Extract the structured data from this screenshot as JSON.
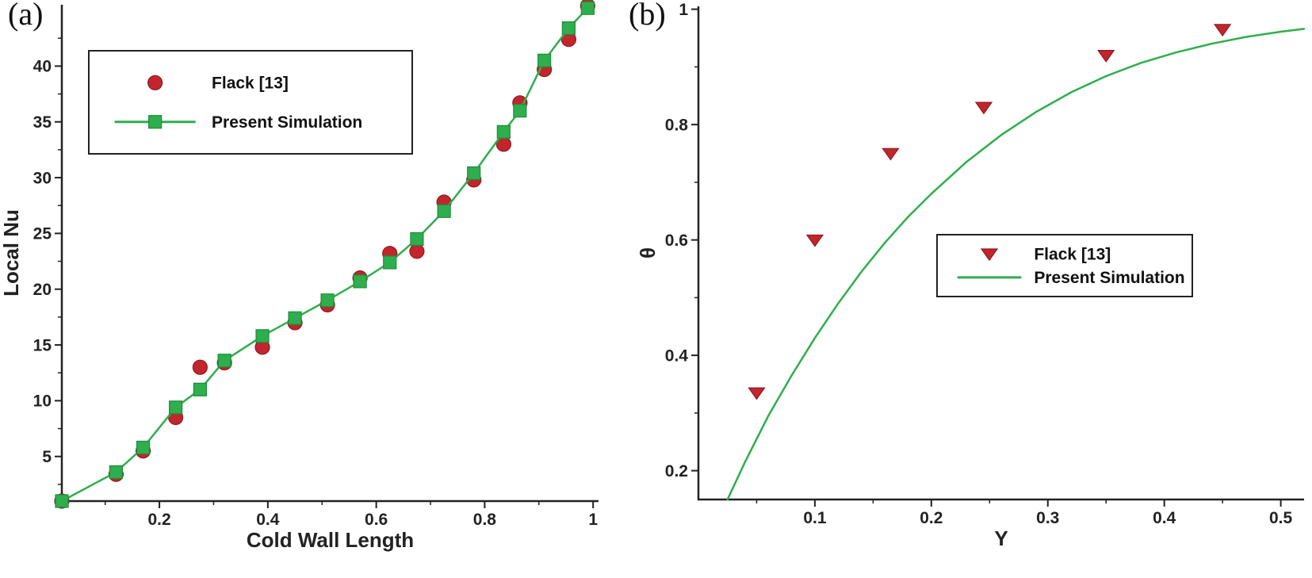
{
  "figure": {
    "background": "#ffffff"
  },
  "panels": [
    {
      "label": "(a)"
    },
    {
      "label": "(b)"
    }
  ],
  "colors": {
    "flack_red": "#c2262c",
    "flack_red_edge": "#8f1a20",
    "simulation_green": "#2fae4d",
    "simulation_green_edge": "#1f8c3c",
    "axis": "#222222"
  },
  "chart_data": [
    {
      "type": "scatter",
      "title": "",
      "xlabel": "Cold Wall Length",
      "ylabel": "Local Nu",
      "xlim": [
        0.02,
        1.01
      ],
      "ylim": [
        1,
        45.5
      ],
      "grid": false,
      "legend_position": "upper-left",
      "xticks": [
        {
          "v": 0.2,
          "label": "0.2"
        },
        {
          "v": 0.4,
          "label": "0.4"
        },
        {
          "v": 0.6,
          "label": "0.6"
        },
        {
          "v": 0.8,
          "label": "0.8"
        },
        {
          "v": 1.0,
          "label": "1"
        }
      ],
      "xminor": [
        0.1,
        0.3,
        0.5,
        0.7,
        0.9
      ],
      "yticks": [
        {
          "v": 5,
          "label": "5"
        },
        {
          "v": 10,
          "label": "10"
        },
        {
          "v": 15,
          "label": "15"
        },
        {
          "v": 20,
          "label": "20"
        },
        {
          "v": 25,
          "label": "25"
        },
        {
          "v": 30,
          "label": "30"
        },
        {
          "v": 35,
          "label": "35"
        },
        {
          "v": 40,
          "label": "40"
        }
      ],
      "yminor": [
        2.5,
        7.5,
        12.5,
        17.5,
        22.5,
        27.5,
        32.5,
        37.5,
        42.5
      ],
      "series": [
        {
          "name": "Flack [13]",
          "color": "#c2262c",
          "edge": "#8f1a20",
          "marker": "circle",
          "marker_size": 9,
          "line": false,
          "x": [
            0.02,
            0.12,
            0.17,
            0.23,
            0.275,
            0.32,
            0.39,
            0.45,
            0.51,
            0.57,
            0.625,
            0.675,
            0.725,
            0.78,
            0.835,
            0.865,
            0.91,
            0.955,
            0.99
          ],
          "y": [
            1.0,
            3.4,
            5.5,
            8.5,
            13.0,
            13.4,
            14.8,
            17.0,
            18.6,
            21.0,
            23.2,
            23.4,
            27.8,
            29.8,
            33.0,
            36.7,
            39.7,
            42.4,
            45.4
          ]
        },
        {
          "name": "Present Simulation",
          "color": "#2fae4d",
          "edge": "#1f8c3c",
          "marker": "square",
          "marker_size": 8,
          "line": true,
          "line_width": 2.5,
          "x": [
            0.02,
            0.12,
            0.17,
            0.23,
            0.275,
            0.32,
            0.39,
            0.45,
            0.51,
            0.57,
            0.625,
            0.675,
            0.725,
            0.78,
            0.835,
            0.865,
            0.91,
            0.955,
            0.99
          ],
          "y": [
            1.0,
            3.6,
            5.8,
            9.4,
            11.0,
            13.6,
            15.8,
            17.4,
            19.0,
            20.7,
            22.4,
            24.5,
            27.0,
            30.4,
            34.1,
            36.0,
            40.5,
            43.4,
            45.2
          ]
        }
      ]
    },
    {
      "type": "line",
      "title": "",
      "xlabel": "Y",
      "ylabel": "θ",
      "xlim": [
        0.0,
        0.52
      ],
      "ylim": [
        0.15,
        1.005
      ],
      "grid": false,
      "legend_position": "center-right",
      "xticks": [
        {
          "v": 0.1,
          "label": "0.1"
        },
        {
          "v": 0.2,
          "label": "0.2"
        },
        {
          "v": 0.3,
          "label": "0.3"
        },
        {
          "v": 0.4,
          "label": "0.4"
        },
        {
          "v": 0.5,
          "label": "0.5"
        }
      ],
      "xminor": [
        0.05,
        0.15,
        0.25,
        0.35,
        0.45
      ],
      "yticks": [
        {
          "v": 0.2,
          "label": "0.2"
        },
        {
          "v": 0.4,
          "label": "0.4"
        },
        {
          "v": 0.6,
          "label": "0.6"
        },
        {
          "v": 0.8,
          "label": "0.8"
        },
        {
          "v": 1.0,
          "label": "1"
        }
      ],
      "yminor": [
        0.3,
        0.5,
        0.7,
        0.9
      ],
      "series": [
        {
          "name": "Flack [13]",
          "color": "#c2262c",
          "edge": "#8f1a20",
          "marker": "triangle-down",
          "marker_size": 10,
          "line": false,
          "x": [
            0.05,
            0.1,
            0.165,
            0.245,
            0.35,
            0.45
          ],
          "y": [
            0.335,
            0.6,
            0.75,
            0.83,
            0.92,
            0.965
          ]
        },
        {
          "name": "Present Simulation",
          "color": "#2fae4d",
          "edge": "#1f8c3c",
          "marker": null,
          "line": true,
          "line_width": 2.5,
          "x": [
            0.025,
            0.04,
            0.06,
            0.08,
            0.1,
            0.12,
            0.14,
            0.16,
            0.18,
            0.2,
            0.23,
            0.26,
            0.29,
            0.32,
            0.35,
            0.38,
            0.41,
            0.44,
            0.47,
            0.5,
            0.52
          ],
          "y": [
            0.15,
            0.215,
            0.295,
            0.365,
            0.43,
            0.49,
            0.545,
            0.595,
            0.64,
            0.68,
            0.735,
            0.782,
            0.822,
            0.856,
            0.884,
            0.907,
            0.925,
            0.94,
            0.952,
            0.961,
            0.966
          ]
        }
      ]
    }
  ]
}
